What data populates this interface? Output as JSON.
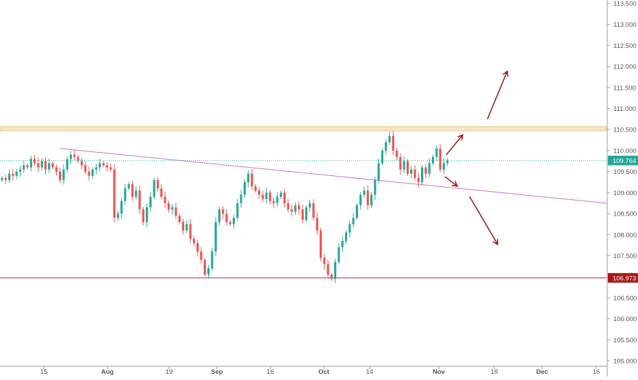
{
  "chart_data": {
    "type": "candlestick",
    "y_ticks": [
      "105.000",
      "105.500",
      "106.000",
      "106.500",
      "107.000",
      "107.500",
      "108.000",
      "108.500",
      "109.000",
      "109.500",
      "110.000",
      "110.500",
      "111.000",
      "111.500",
      "112.000",
      "112.500",
      "113.000",
      "113.500"
    ],
    "x_ticks": [
      "15",
      "Aug",
      "19",
      "Sep",
      "16",
      "Oct",
      "14",
      "Nov",
      "18",
      "Dec",
      "16"
    ],
    "ylim": [
      104.95,
      113.55
    ],
    "last_price": "109.764",
    "support_price": "106.973",
    "resistance_zone": [
      110.47,
      110.57
    ],
    "trendline": {
      "start": {
        "date": "Jul 21",
        "price": 110.05
      },
      "end": {
        "date": "Dec 16+",
        "price": 108.75
      }
    },
    "grid": false,
    "colors": {
      "up": "#26a69a",
      "down": "#ef5350",
      "trendline": "#c86dd7",
      "support": "#b71c3c",
      "zone_fill": "#f6e6c4",
      "zone_edge": "#e9c987",
      "arrows": "#a01818",
      "price_label": "#26a69a",
      "support_label": "#a81818"
    },
    "ohlc_note": "approximate daily close path",
    "closes": [
      109.35,
      109.3,
      109.45,
      109.4,
      109.5,
      109.55,
      109.65,
      109.6,
      109.8,
      109.7,
      109.6,
      109.75,
      109.55,
      109.7,
      109.6,
      109.5,
      109.3,
      109.55,
      109.8,
      109.9,
      109.85,
      109.75,
      109.65,
      109.5,
      109.4,
      109.55,
      109.6,
      109.7,
      109.65,
      109.6,
      109.55,
      108.4,
      108.5,
      108.8,
      109.1,
      109.2,
      108.9,
      109.05,
      108.6,
      108.3,
      108.65,
      108.9,
      109.3,
      109.1,
      108.9,
      108.75,
      108.6,
      108.65,
      108.45,
      108.3,
      108.1,
      108.25,
      107.9,
      107.8,
      107.6,
      107.4,
      107.05,
      107.2,
      107.6,
      108.3,
      108.6,
      108.5,
      108.3,
      108.25,
      108.4,
      108.75,
      108.95,
      109.25,
      109.45,
      109.15,
      109.05,
      108.95,
      108.85,
      109.0,
      108.8,
      108.75,
      108.9,
      109.0,
      108.75,
      108.6,
      108.55,
      108.7,
      108.6,
      108.35,
      108.65,
      108.75,
      108.4,
      108.1,
      107.45,
      107.3,
      107.05,
      106.95,
      107.35,
      107.7,
      107.85,
      108.05,
      108.25,
      108.4,
      108.7,
      108.95,
      109.05,
      108.7,
      108.95,
      109.3,
      109.7,
      110.0,
      110.2,
      110.35,
      110.0,
      109.85,
      109.55,
      109.75,
      109.45,
      109.55,
      109.35,
      109.25,
      109.6,
      109.45,
      109.7,
      109.85,
      110.05,
      109.55,
      109.7,
      109.76
    ]
  }
}
